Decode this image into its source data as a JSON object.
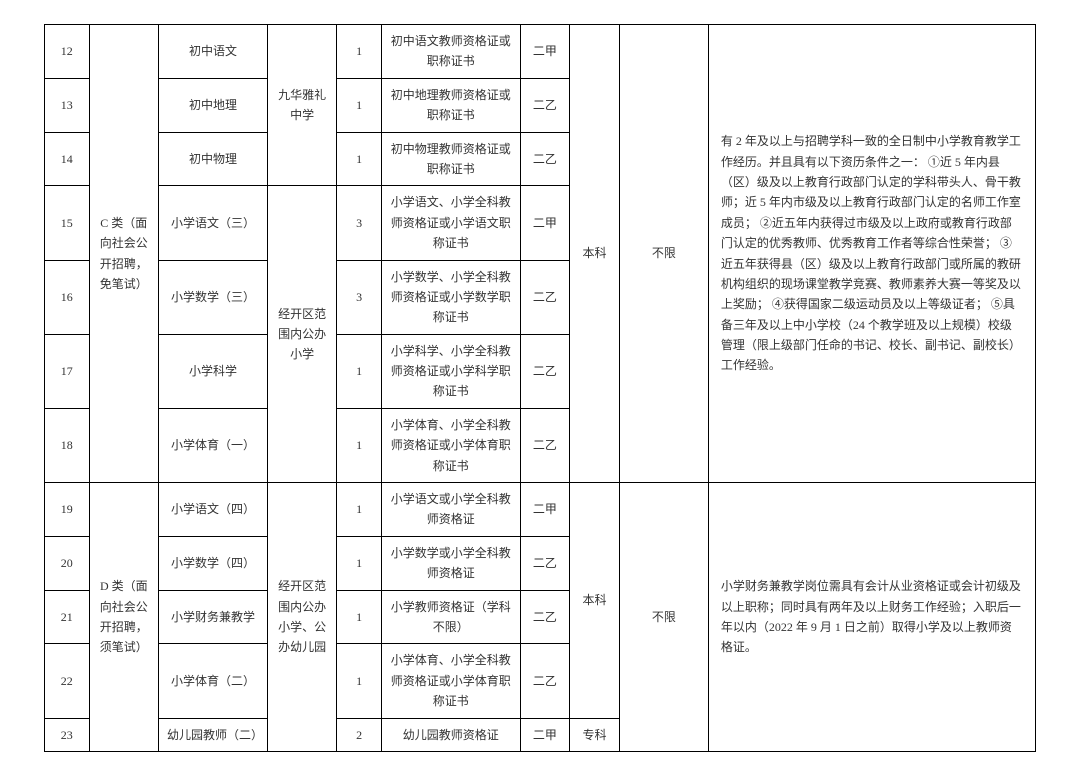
{
  "rows": [
    {
      "seq": "12",
      "subject": "初中语文",
      "count": "1",
      "cert": "初中语文教师资格证或职称证书",
      "level": "二甲"
    },
    {
      "seq": "13",
      "subject": "初中地理",
      "count": "1",
      "cert": "初中地理教师资格证或职称证书",
      "level": "二乙"
    },
    {
      "seq": "14",
      "subject": "初中物理",
      "count": "1",
      "cert": "初中物理教师资格证或职称证书",
      "level": "二乙"
    },
    {
      "seq": "15",
      "subject": "小学语文（三）",
      "count": "3",
      "cert": "小学语文、小学全科教师资格证或小学语文职称证书",
      "level": "二甲"
    },
    {
      "seq": "16",
      "subject": "小学数学（三）",
      "count": "3",
      "cert": "小学数学、小学全科教师资格证或小学数学职称证书",
      "level": "二乙"
    },
    {
      "seq": "17",
      "subject": "小学科学",
      "count": "1",
      "cert": "小学科学、小学全科教师资格证或小学科学职称证书",
      "level": "二乙"
    },
    {
      "seq": "18",
      "subject": "小学体育（一）",
      "count": "1",
      "cert": "小学体育、小学全科教师资格证或小学体育职称证书",
      "level": "二乙"
    },
    {
      "seq": "19",
      "subject": "小学语文（四）",
      "count": "1",
      "cert": "小学语文或小学全科教师资格证",
      "level": "二甲"
    },
    {
      "seq": "20",
      "subject": "小学数学（四）",
      "count": "1",
      "cert": "小学数学或小学全科教师资格证",
      "level": "二乙"
    },
    {
      "seq": "21",
      "subject": "小学财务兼教学",
      "count": "1",
      "cert": "小学教师资格证（学科不限）",
      "level": "二乙"
    },
    {
      "seq": "22",
      "subject": "小学体育（二）",
      "count": "1",
      "cert": "小学体育、小学全科教师资格证或小学体育职称证书",
      "level": "二乙"
    },
    {
      "seq": "23",
      "subject": "幼儿园教师（二）",
      "count": "2",
      "cert": "幼儿园教师资格证",
      "level": "二甲"
    }
  ],
  "cat_c": "C 类（面向社会公开招聘，免笔试）",
  "cat_d": "D 类（面向社会公开招聘，须笔试）",
  "school_a": "九华雅礼中学",
  "school_b": "经开区范围内公办小学",
  "school_c": "经开区范围内公办小学、公办幼儿园",
  "edu_bk": "本科",
  "edu_zk": "专科",
  "major": "不限",
  "req_c": "有 2 年及以上与招聘学科一致的全日制中小学教育教学工作经历。并且具有以下资历条件之一：\n①近 5 年内县（区）级及以上教育行政部门认定的学科带头人、骨干教师；近 5 年内市级及以上教育行政部门认定的名师工作室成员；\n②近五年内获得过市级及以上政府或教育行政部门认定的优秀教师、优秀教育工作者等综合性荣誉；\n③近五年获得县（区）级及以上教育行政部门或所属的教研机构组织的现场课堂教学竞赛、教师素养大赛一等奖及以上奖励；\n④获得国家二级运动员及以上等级证者；\n⑤具备三年及以上中小学校（24 个教学班及以上规模）校级管理（限上级部门任命的书记、校长、副书记、副校长）工作经验。",
  "req_d": "小学财务兼教学岗位需具有会计从业资格证或会计初级及以上职称；同时具有两年及以上财务工作经验；入职后一年以内（2022 年 9 月 1 日之前）取得小学及以上教师资格证。"
}
